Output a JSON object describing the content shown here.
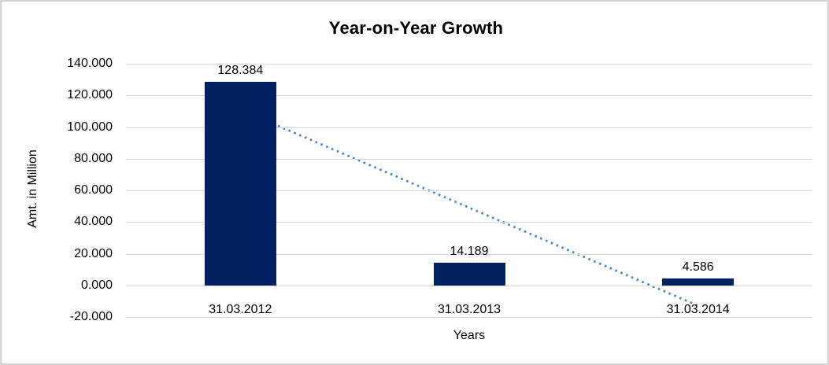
{
  "chart_data": {
    "type": "bar",
    "title": "Year-on-Year Growth",
    "xlabel": "Years",
    "ylabel": "Amt. in Million",
    "categories": [
      "31.03.2012",
      "31.03.2013",
      "31.03.2014"
    ],
    "values": [
      128.384,
      14.189,
      4.586
    ],
    "data_labels": [
      "128.384",
      "14.189",
      "4.586"
    ],
    "ylim": [
      -20,
      140
    ],
    "yticks": [
      140,
      120,
      100,
      80,
      60,
      40,
      20,
      0,
      -20
    ],
    "ytick_labels": [
      "140.000",
      "120.000",
      "100.000",
      "80.000",
      "60.000",
      "40.000",
      "20.000",
      "0.000",
      "-20.000"
    ],
    "grid": true,
    "legend": "none",
    "colors": {
      "bar": "#002060",
      "trendline": "#4a86c8",
      "gridline": "#d9d9d9",
      "text": "#000000",
      "background": "#ffffff",
      "frame_border": "#d3d3d3"
    },
    "trendline": {
      "type": "linear",
      "style": "dotted",
      "start_value": 110.95,
      "end_value": -12.85
    }
  }
}
